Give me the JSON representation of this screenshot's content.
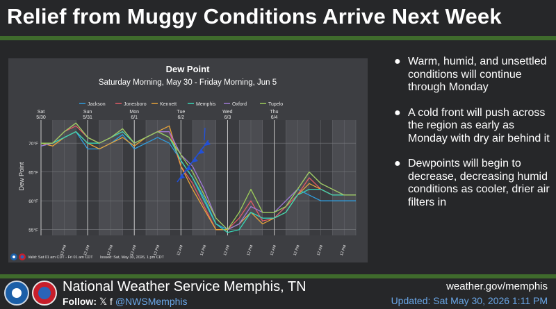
{
  "page": {
    "title": "Relief from Muggy Conditions Arrive Next Week"
  },
  "bullets": [
    "Warm, humid, and unsettled conditions will continue through Monday",
    "A cold front will push across the region as early as Monday with dry air behind it",
    "Dewpoints will begin to decrease, decreasing humid conditions as cooler, drier air filters in"
  ],
  "footer": {
    "org": "National Weather Service Memphis, TN",
    "follow_label": "Follow:",
    "social_icons": "𝕏 f",
    "handle": "@NWSMemphis",
    "site": "weather.gov/memphis",
    "updated": "Updated: Sat May 30, 2026 1:11 PM"
  },
  "colors": {
    "background": "#262729",
    "accent_green": "#3f6b2c",
    "link_blue": "#6aa7e8",
    "panel": "#3d3e42",
    "Jackson": "#2f9fe0",
    "Jonesboro": "#e35b66",
    "Kennett": "#e8a43a",
    "Memphis": "#38d8b8",
    "Oxford": "#a07ad8",
    "Tupelo": "#9ecf5a",
    "front_arrow": "#2250d6"
  },
  "chart_data": {
    "type": "line",
    "title": "Dew Point",
    "subtitle": "Saturday Morning, May 30 - Friday Morning, Jun 5",
    "ylabel": "Dew Point",
    "xlabel": "",
    "x_hours": [
      0,
      6,
      12,
      18,
      24,
      30,
      36,
      42,
      48,
      54,
      60,
      66,
      72,
      78,
      84,
      90,
      96,
      102,
      108,
      114,
      120,
      126,
      132,
      138,
      144,
      150,
      156,
      162
    ],
    "ylim": [
      54,
      74
    ],
    "yticks": [
      55,
      60,
      65,
      70
    ],
    "ytick_labels": [
      "55°F",
      "60°F",
      "65°F",
      "70°F"
    ],
    "day_labels": [
      {
        "day": "Sat",
        "date": "5/30",
        "hour": 0
      },
      {
        "day": "Sun",
        "date": "5/31",
        "hour": 24
      },
      {
        "day": "Mon",
        "date": "6/1",
        "hour": 48
      },
      {
        "day": "Tue",
        "date": "6/2",
        "hour": 72
      },
      {
        "day": "Wed",
        "date": "6/3",
        "hour": 96
      },
      {
        "day": "Thu",
        "date": "6/4",
        "hour": 120
      }
    ],
    "midday_tick_hours": [
      12,
      36,
      60,
      84,
      108,
      132,
      156
    ],
    "midnight_tick_hours": [
      24,
      48,
      72,
      96,
      120,
      144
    ],
    "midday_label": "12 PM",
    "midnight_label": "12 AM",
    "series": [
      {
        "name": "Jackson",
        "values": [
          69.5,
          70,
          71,
          72,
          69,
          69,
          70,
          71.5,
          69,
          70,
          71,
          70,
          67,
          64,
          60.5,
          56,
          55,
          56,
          58,
          57,
          57,
          59,
          62,
          61,
          60,
          60,
          60,
          60
        ]
      },
      {
        "name": "Jonesboro",
        "values": [
          70,
          70,
          72,
          73,
          71,
          70,
          71,
          72,
          70,
          71,
          72,
          72,
          66,
          63,
          59,
          55,
          55,
          57,
          60,
          56.5,
          57,
          59,
          61,
          64,
          62,
          61,
          61,
          61
        ]
      },
      {
        "name": "Kennett",
        "values": [
          70,
          69.5,
          71,
          72,
          70,
          69,
          70,
          71,
          69.5,
          71,
          72,
          73,
          66,
          62,
          58.5,
          55,
          55,
          56,
          58,
          56,
          57,
          58,
          61,
          63,
          62,
          61,
          61,
          61
        ]
      },
      {
        "name": "Memphis",
        "values": [
          70,
          70,
          71,
          72,
          70,
          70,
          71,
          72,
          70,
          71,
          72,
          71,
          67,
          64,
          60,
          56,
          54.5,
          55,
          58,
          57,
          57,
          58,
          61,
          62,
          62,
          61,
          61,
          61
        ]
      },
      {
        "name": "Oxford",
        "values": [
          69.5,
          70,
          72,
          73.5,
          71,
          70,
          71,
          72.5,
          70,
          71,
          72,
          72,
          68,
          66,
          62,
          57,
          55,
          56,
          59,
          58,
          58,
          60,
          62,
          65,
          63,
          62,
          61,
          61
        ]
      },
      {
        "name": "Tupelo",
        "values": [
          70,
          70,
          72,
          73.5,
          71,
          70,
          71,
          72.5,
          70,
          71,
          72,
          71,
          68,
          65,
          61,
          57,
          55,
          58,
          62,
          58,
          58,
          59,
          62,
          65,
          63,
          62,
          61,
          61
        ]
      }
    ],
    "annotations": {
      "valid_text": "Valid: Sat 01 am CDT - Fri 01 am CDT",
      "issued_text": "Issued: Sat, May 30, 2026, 1 pm CDT"
    },
    "legend_placement": "top-center",
    "grid": true
  }
}
